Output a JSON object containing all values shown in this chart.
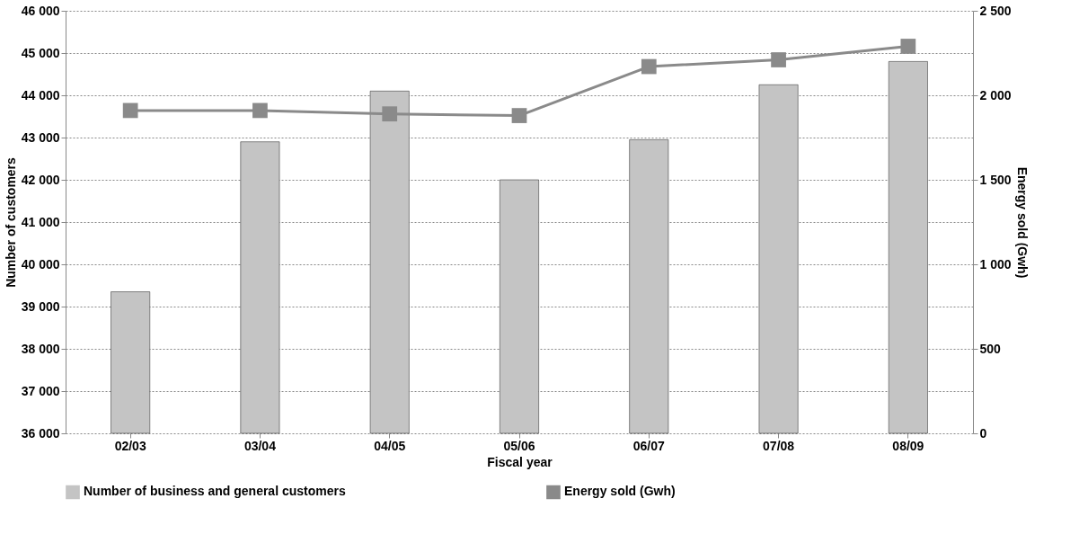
{
  "chart_data": {
    "type": "bar",
    "xlabel": "Fiscal year",
    "ylabel": "Number of customers",
    "y2label": "Energy sold (Gwh)",
    "categories": [
      "02/03",
      "03/04",
      "04/05",
      "05/06",
      "06/07",
      "07/08",
      "08/09"
    ],
    "series": [
      {
        "name": "Number of business and general customers",
        "color": "#c4c4c4",
        "values": [
          39350,
          42900,
          44100,
          42000,
          42950,
          44250,
          44800
        ]
      },
      {
        "name": "Energy sold (Gwh)",
        "type": "line",
        "axis": "y2",
        "color": "#8a8a8a",
        "marker": "square",
        "values": [
          1910,
          1910,
          1890,
          1880,
          2170,
          2210,
          2290
        ]
      }
    ],
    "ylim": [
      36000,
      46000
    ],
    "yticks": [
      {
        "value": 36000,
        "label": "36 000"
      },
      {
        "value": 37000,
        "label": "37 000"
      },
      {
        "value": 38000,
        "label": "38 000"
      },
      {
        "value": 39000,
        "label": "39 000"
      },
      {
        "value": 40000,
        "label": "40 000"
      },
      {
        "value": 41000,
        "label": "41 000"
      },
      {
        "value": 42000,
        "label": "42 000"
      },
      {
        "value": 43000,
        "label": "43 000"
      },
      {
        "value": 44000,
        "label": "44 000"
      },
      {
        "value": 45000,
        "label": "45 000"
      },
      {
        "value": 46000,
        "label": "46 000"
      }
    ],
    "y2lim": [
      0,
      2500
    ],
    "y2ticks": [
      0,
      500,
      {
        "value": 1000,
        "label": "1 000"
      },
      {
        "value": 1500,
        "label": "1 500"
      },
      {
        "value": 2000,
        "label": "2 000"
      },
      {
        "value": 2500,
        "label": "2 500"
      }
    ],
    "grid": "y",
    "legend": "bottom"
  }
}
